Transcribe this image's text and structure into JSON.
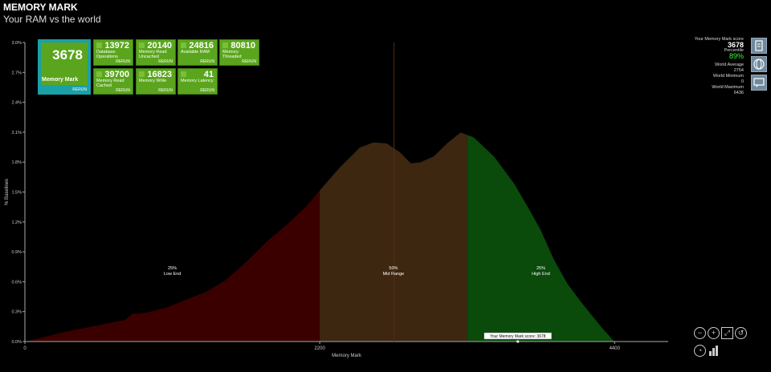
{
  "header": {
    "title": "MEMORY MARK",
    "subtitle": "Your RAM vs the world"
  },
  "tiles": [
    {
      "id": "memory-mark",
      "value": "3678",
      "label": "Memory Mark",
      "rerun": "RERUN"
    },
    {
      "id": "database-operations",
      "value": "13972",
      "label": "Database Operations",
      "rerun": "RERUN"
    },
    {
      "id": "memory-read-uncached",
      "value": "20140",
      "label": "Memory Read Uncached",
      "rerun": "RERUN"
    },
    {
      "id": "available-ram",
      "value": "24816",
      "label": "Available RAM",
      "rerun": "RERUN"
    },
    {
      "id": "memory-threaded",
      "value": "80810",
      "label": "Memory Threaded",
      "rerun": "RERUN"
    },
    {
      "id": "memory-read-cached",
      "value": "39700",
      "label": "Memory Read Cached",
      "rerun": "RERUN"
    },
    {
      "id": "memory-write",
      "value": "16823",
      "label": "Memory Write",
      "rerun": "RERUN"
    },
    {
      "id": "memory-latency",
      "value": "41",
      "label": "Memory Latency",
      "rerun": "RERUN"
    }
  ],
  "right_panel": {
    "score_label": "Your Memory Mark score",
    "score": "3678",
    "percentile_label": "Percentile",
    "percentile": "89%",
    "avg_label": "World Average",
    "avg": "2754",
    "min_label": "World Minimum",
    "min": "0",
    "max_label": "World Maximum",
    "max": "6436"
  },
  "side_buttons": [
    "document-icon",
    "globe-icon",
    "chat-icon"
  ],
  "zoom_buttons": [
    "zoom-out-icon",
    "zoom-in-icon",
    "zoom-fit-icon",
    "zoom-reset-icon"
  ],
  "bottom_buttons": [
    "gauge-icon",
    "bar-chart-icon"
  ],
  "colors": {
    "low": "#3a0000",
    "mid": "#3d2710",
    "high": "#0a4a0a",
    "tile": "#5aa51d",
    "accent": "#1aa0a8"
  },
  "chart_data": {
    "type": "area",
    "xlabel": "Memory Mark",
    "ylabel": "% Baselines",
    "xlim": [
      0,
      4800
    ],
    "ylim": [
      0,
      3.0
    ],
    "xticks": [
      "0",
      "2200",
      "4400"
    ],
    "xtick_values": [
      0,
      2200,
      4400
    ],
    "yticks": [
      "0.0%",
      "0.3%",
      "0.6%",
      "0.9%",
      "1.2%",
      "1.5%",
      "1.8%",
      "2.1%",
      "2.4%",
      "2.7%",
      "3.0%"
    ],
    "ytick_values": [
      0,
      0.3,
      0.6,
      0.9,
      1.2,
      1.5,
      1.8,
      2.1,
      2.4,
      2.7,
      3.0
    ],
    "x": [
      0,
      150,
      300,
      450,
      600,
      750,
      800,
      900,
      1050,
      1200,
      1350,
      1500,
      1650,
      1800,
      1950,
      2100,
      2200,
      2350,
      2500,
      2600,
      2700,
      2800,
      2880,
      2950,
      3050,
      3150,
      3250,
      3350,
      3500,
      3650,
      3750,
      3850,
      3950,
      4050,
      4150,
      4300,
      4400
    ],
    "y": [
      0.0,
      0.05,
      0.1,
      0.14,
      0.18,
      0.22,
      0.28,
      0.29,
      0.34,
      0.42,
      0.5,
      0.62,
      0.8,
      1.0,
      1.17,
      1.36,
      1.52,
      1.75,
      1.95,
      2.0,
      1.99,
      1.9,
      1.79,
      1.8,
      1.86,
      1.99,
      2.1,
      2.05,
      1.86,
      1.59,
      1.36,
      1.12,
      0.82,
      0.58,
      0.4,
      0.15,
      0.0
    ],
    "regions": [
      {
        "pct": "25%",
        "label": "Low End",
        "from": 0,
        "to": 2200
      },
      {
        "pct": "50%",
        "label": "Mid Range",
        "from": 2200,
        "to": 3300
      },
      {
        "pct": "25%",
        "label": "High End",
        "from": 3300,
        "to": 4400
      }
    ],
    "marker": {
      "label": "Your Memory Mark score: 3678",
      "value": 3678
    },
    "avg_line": 2754
  }
}
